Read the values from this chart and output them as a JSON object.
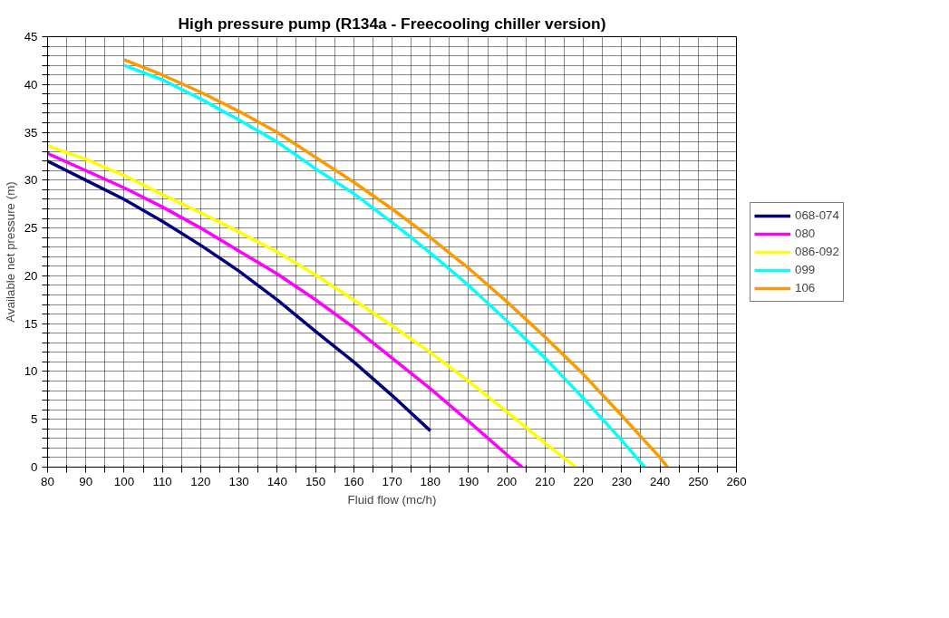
{
  "chart_data": {
    "type": "line",
    "title": "High pressure pump (R134a - Freecooling chiller version)",
    "xlabel": "Fluid flow (mc/h)",
    "ylabel": "Available net pressure (m)",
    "xlim": [
      80,
      260
    ],
    "ylim": [
      0,
      45
    ],
    "xticks": [
      80,
      {
        "value": 85,
        "label": null
      },
      90,
      {
        "value": 95,
        "label": null
      },
      100,
      {
        "value": 105,
        "label": null
      },
      110,
      {
        "value": 115,
        "label": null
      },
      120,
      {
        "value": 125,
        "label": null
      },
      130,
      {
        "value": 135,
        "label": null
      },
      140,
      {
        "value": 145,
        "label": null
      },
      150,
      {
        "value": 155,
        "label": null
      },
      160,
      {
        "value": 165,
        "label": null
      },
      170,
      {
        "value": 175,
        "label": null
      },
      180,
      {
        "value": 185,
        "label": null
      },
      190,
      {
        "value": 195,
        "label": null
      },
      200,
      {
        "value": 205,
        "label": null
      },
      210,
      {
        "value": 215,
        "label": null
      },
      220,
      {
        "value": 225,
        "label": null
      },
      230,
      {
        "value": 235,
        "label": null
      },
      240,
      {
        "value": 245,
        "label": null
      },
      250,
      {
        "value": 255,
        "label": null
      },
      260
    ],
    "yticks": [
      0,
      {
        "value": 1,
        "label": null
      },
      {
        "value": 2,
        "label": null
      },
      {
        "value": 3,
        "label": null
      },
      {
        "value": 4,
        "label": null
      },
      5,
      {
        "value": 6,
        "label": null
      },
      {
        "value": 7,
        "label": null
      },
      {
        "value": 8,
        "label": null
      },
      {
        "value": 9,
        "label": null
      },
      10,
      {
        "value": 11,
        "label": null
      },
      {
        "value": 12,
        "label": null
      },
      {
        "value": 13,
        "label": null
      },
      {
        "value": 14,
        "label": null
      },
      15,
      {
        "value": 16,
        "label": null
      },
      {
        "value": 17,
        "label": null
      },
      {
        "value": 18,
        "label": null
      },
      {
        "value": 19,
        "label": null
      },
      20,
      {
        "value": 21,
        "label": null
      },
      {
        "value": 22,
        "label": null
      },
      {
        "value": 23,
        "label": null
      },
      {
        "value": 24,
        "label": null
      },
      25,
      {
        "value": 26,
        "label": null
      },
      {
        "value": 27,
        "label": null
      },
      {
        "value": 28,
        "label": null
      },
      {
        "value": 29,
        "label": null
      },
      30,
      {
        "value": 31,
        "label": null
      },
      {
        "value": 32,
        "label": null
      },
      {
        "value": 33,
        "label": null
      },
      {
        "value": 34,
        "label": null
      },
      35,
      {
        "value": 36,
        "label": null
      },
      {
        "value": 37,
        "label": null
      },
      {
        "value": 38,
        "label": null
      },
      {
        "value": 39,
        "label": null
      },
      40,
      {
        "value": 41,
        "label": null
      },
      {
        "value": 42,
        "label": null
      },
      {
        "value": 43,
        "label": null
      },
      {
        "value": 44,
        "label": null
      },
      45
    ],
    "grid": true,
    "legend": "right",
    "marker": "none",
    "line_style": "solid",
    "series": [
      {
        "name": "068-074",
        "color": "#000080",
        "x": [
          80,
          90,
          100,
          110,
          120,
          130,
          140,
          150,
          160,
          170,
          180
        ],
        "values": [
          32,
          30,
          28,
          25.7,
          23.2,
          20.5,
          17.5,
          14.2,
          11,
          7.5,
          3.8
        ]
      },
      {
        "name": "080",
        "color": "#ff00ff",
        "x": [
          80,
          90,
          100,
          110,
          120,
          130,
          140,
          150,
          160,
          170,
          180,
          190,
          200,
          204
        ],
        "values": [
          32.8,
          31,
          29.2,
          27.2,
          25,
          22.6,
          20.2,
          17.5,
          14.6,
          11.4,
          8.2,
          4.8,
          1.3,
          0
        ]
      },
      {
        "name": "086-092",
        "color": "#ffff00",
        "x": [
          80,
          90,
          100,
          110,
          120,
          130,
          140,
          150,
          160,
          170,
          180,
          190,
          200,
          210,
          218
        ],
        "values": [
          33.6,
          32.2,
          30.5,
          28.5,
          26.6,
          24.6,
          22.5,
          20.1,
          17.5,
          14.8,
          12,
          9,
          5.8,
          2.5,
          0
        ]
      },
      {
        "name": "099",
        "color": "#00ffff",
        "x": [
          100,
          110,
          120,
          130,
          140,
          150,
          160,
          170,
          180,
          190,
          200,
          210,
          220,
          230,
          236
        ],
        "values": [
          42,
          40.5,
          38.5,
          36.3,
          34,
          31.2,
          28.6,
          25.6,
          22.4,
          19,
          15.3,
          11.4,
          7.2,
          2.8,
          0
        ]
      },
      {
        "name": "106",
        "color": "#ff9900",
        "x": [
          100,
          110,
          120,
          130,
          140,
          150,
          160,
          170,
          180,
          190,
          200,
          210,
          220,
          230,
          240,
          242
        ],
        "values": [
          42.6,
          41,
          39.2,
          37.2,
          35,
          32.4,
          29.8,
          27,
          24,
          20.8,
          17.3,
          13.6,
          9.7,
          5.4,
          1,
          0
        ]
      }
    ]
  }
}
